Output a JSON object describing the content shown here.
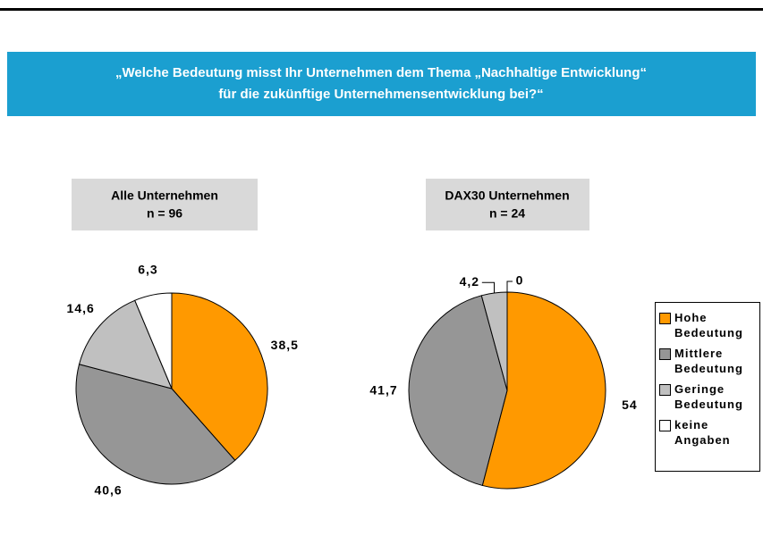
{
  "banner": {
    "lines": [
      "„Welche Bedeutung misst Ihr Unternehmen dem Thema „Nachhaltige Entwicklung“",
      "für die zukünftige Unternehmensentwicklung bei?“"
    ]
  },
  "chart_data": [
    {
      "type": "pie",
      "title": "Alle Unternehmen",
      "subtitle": "n = 96",
      "categories": [
        "Hohe Bedeutung",
        "Mittlere Bedeutung",
        "Geringe Bedeutung",
        "keine Angaben"
      ],
      "values": [
        38.5,
        40.6,
        14.6,
        6.3
      ],
      "value_labels": [
        "38,5",
        "40,6",
        "14,6",
        "6,3"
      ],
      "colors": [
        "#ff9900",
        "#969696",
        "#c0c0c0",
        "#ffffff"
      ]
    },
    {
      "type": "pie",
      "title": "DAX30 Unternehmen",
      "subtitle": "n = 24",
      "categories": [
        "Hohe Bedeutung",
        "Mittlere Bedeutung",
        "Geringe Bedeutung",
        "keine Angaben"
      ],
      "values": [
        54,
        41.7,
        4.2,
        0
      ],
      "value_labels": [
        "54",
        "41,7",
        "4,2",
        "0"
      ],
      "colors": [
        "#ff9900",
        "#969696",
        "#c0c0c0",
        "#ffffff"
      ],
      "legend": "right"
    }
  ]
}
